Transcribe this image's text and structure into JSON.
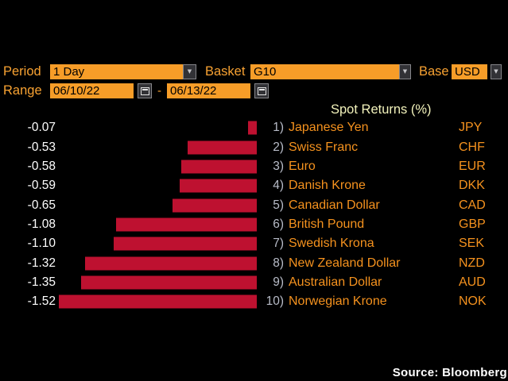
{
  "controls": {
    "period": {
      "label": "Period",
      "value": "1 Day"
    },
    "basket": {
      "label": "Basket",
      "value": "G10"
    },
    "base": {
      "label": "Base",
      "value": "USD"
    },
    "range": {
      "label": "Range",
      "start": "06/10/22",
      "separator": "-",
      "end": "06/13/22"
    }
  },
  "chart_data": {
    "type": "bar",
    "orientation": "horizontal",
    "title": "Spot Returns (%)",
    "xlabel": "",
    "ylabel": "",
    "xlim": [
      -1.6,
      0
    ],
    "grid": false,
    "legend": false,
    "bar_color": "#be1130",
    "ranks": [
      "1)",
      "2)",
      "3)",
      "4)",
      "5)",
      "6)",
      "7)",
      "8)",
      "9)",
      "10)"
    ],
    "categories": [
      "Japanese Yen",
      "Swiss Franc",
      "Euro",
      "Danish Krone",
      "Canadian Dollar",
      "British Pound",
      "Swedish Krona",
      "New Zealand Dollar",
      "Australian Dollar",
      "Norwegian Krone"
    ],
    "codes": [
      "JPY",
      "CHF",
      "EUR",
      "DKK",
      "CAD",
      "GBP",
      "SEK",
      "NZD",
      "AUD",
      "NOK"
    ],
    "values": [
      -0.07,
      -0.53,
      -0.58,
      -0.59,
      -0.65,
      -1.08,
      -1.1,
      -1.32,
      -1.35,
      -1.52
    ],
    "value_labels": [
      "-0.07",
      "-0.53",
      "-0.58",
      "-0.59",
      "-0.65",
      "-1.08",
      "-1.10",
      "-1.32",
      "-1.35",
      "-1.52"
    ]
  },
  "footer": {
    "source": "Source: Bloomberg"
  },
  "icons": {
    "chevron_down": "▼"
  },
  "colors": {
    "background": "#000000",
    "accent_orange_fill": "#f79d28",
    "label_orange": "#f8a232",
    "name_orange": "#f5921e",
    "bar_red": "#be1130",
    "title_yellow": "#f2f2bb",
    "rank_gray": "#b8bcc8",
    "value_white": "#ffffff"
  }
}
